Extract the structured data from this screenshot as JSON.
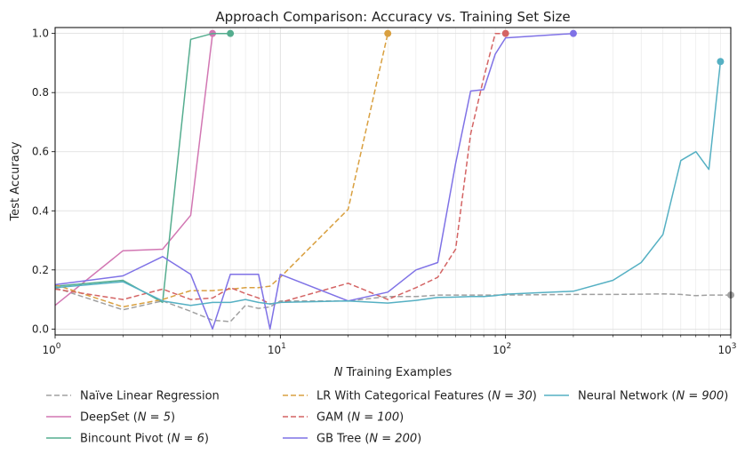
{
  "chart_data": {
    "type": "line",
    "title": "Approach Comparison: Accuracy vs. Training Set Size",
    "xlabel_italic": "N",
    "xlabel_rest": " Training Examples",
    "ylabel": "Test Accuracy",
    "x_scale": "log",
    "xlim": [
      1,
      1000
    ],
    "ylim": [
      -0.02,
      1.02
    ],
    "x_ticks": [
      1,
      10,
      100,
      1000
    ],
    "x_tick_labels": [
      {
        "base": "10",
        "exp": "0"
      },
      {
        "base": "10",
        "exp": "1"
      },
      {
        "base": "10",
        "exp": "2"
      },
      {
        "base": "10",
        "exp": "3"
      }
    ],
    "y_ticks": [
      0.0,
      0.2,
      0.4,
      0.6,
      0.8,
      1.0
    ],
    "y_tick_labels": [
      "0.0",
      "0.2",
      "0.4",
      "0.6",
      "0.8",
      "1.0"
    ],
    "grid": true,
    "legend_position": "bottom",
    "series": [
      {
        "name": "Naïve Linear Regression",
        "legend_main": "Naïve Linear Regression",
        "legend_note": "",
        "color": "#a0a0a0",
        "dash": true,
        "end_marker": true,
        "x": [
          1,
          2,
          3,
          4,
          5,
          6,
          7,
          8,
          9,
          10,
          20,
          30,
          40,
          50,
          60,
          70,
          80,
          90,
          100,
          200,
          300,
          400,
          500,
          600,
          700,
          800,
          900,
          1000
        ],
        "y": [
          0.14,
          0.065,
          0.095,
          0.06,
          0.03,
          0.025,
          0.08,
          0.07,
          0.075,
          0.095,
          0.095,
          0.11,
          0.11,
          0.115,
          0.115,
          0.115,
          0.115,
          0.115,
          0.115,
          0.117,
          0.117,
          0.118,
          0.119,
          0.117,
          0.113,
          0.115,
          0.115,
          0.115
        ]
      },
      {
        "name": "DeepSet (N = 5)",
        "legend_main": "DeepSet (",
        "legend_note": "N = 5",
        "color": "#d277b3",
        "dash": false,
        "end_marker": true,
        "x": [
          1,
          2,
          3,
          4,
          5
        ],
        "y": [
          0.08,
          0.265,
          0.27,
          0.385,
          1.0
        ]
      },
      {
        "name": "Bincount Pivot (N = 6)",
        "legend_main": "Bincount Pivot (",
        "legend_note": "N = 6",
        "color": "#55ad8f",
        "dash": false,
        "end_marker": true,
        "x": [
          1,
          2,
          3,
          4,
          5,
          6
        ],
        "y": [
          0.145,
          0.165,
          0.09,
          0.98,
          1.0,
          1.0
        ]
      },
      {
        "name": "LR With Categorical Features (N = 30)",
        "legend_main": "LR With Categorical Features (",
        "legend_note": "N = 30",
        "color": "#d9a040",
        "dash": true,
        "end_marker": true,
        "x": [
          1,
          2,
          3,
          4,
          5,
          6,
          7,
          8,
          9,
          10,
          20,
          30
        ],
        "y": [
          0.15,
          0.075,
          0.1,
          0.13,
          0.13,
          0.135,
          0.14,
          0.14,
          0.145,
          0.175,
          0.405,
          1.0
        ]
      },
      {
        "name": "GAM (N = 100)",
        "legend_main": "GAM (",
        "legend_note": "N = 100",
        "color": "#d46464",
        "dash": true,
        "end_marker": true,
        "x": [
          1,
          2,
          3,
          4,
          5,
          6,
          7,
          8,
          9,
          10,
          20,
          30,
          40,
          50,
          60,
          70,
          80,
          90,
          100
        ],
        "y": [
          0.135,
          0.1,
          0.135,
          0.1,
          0.105,
          0.14,
          0.12,
          0.105,
          0.085,
          0.09,
          0.155,
          0.1,
          0.14,
          0.175,
          0.27,
          0.66,
          0.85,
          1.0,
          1.0
        ]
      },
      {
        "name": "GB Tree (N = 200)",
        "legend_main": "GB Tree (",
        "legend_note": "N = 200",
        "color": "#7f72e6",
        "dash": false,
        "end_marker": true,
        "x": [
          1,
          2,
          3,
          4,
          5,
          6,
          7,
          8,
          9,
          10,
          20,
          30,
          40,
          50,
          60,
          70,
          80,
          90,
          100,
          200
        ],
        "y": [
          0.15,
          0.18,
          0.245,
          0.185,
          0.0,
          0.185,
          0.185,
          0.185,
          0.0,
          0.185,
          0.095,
          0.125,
          0.2,
          0.225,
          0.56,
          0.805,
          0.81,
          0.93,
          0.985,
          1.0
        ]
      },
      {
        "name": "Neural Network (N = 900)",
        "legend_main": "Neural Network (",
        "legend_note": "N = 900",
        "color": "#55b0c3",
        "dash": false,
        "end_marker": true,
        "x": [
          1,
          2,
          3,
          4,
          5,
          6,
          7,
          8,
          9,
          10,
          20,
          30,
          40,
          50,
          60,
          70,
          80,
          90,
          100,
          200,
          300,
          400,
          500,
          600,
          700,
          800,
          900
        ],
        "y": [
          0.14,
          0.16,
          0.095,
          0.08,
          0.09,
          0.09,
          0.1,
          0.09,
          0.085,
          0.09,
          0.095,
          0.088,
          0.097,
          0.107,
          0.108,
          0.11,
          0.11,
          0.113,
          0.118,
          0.128,
          0.165,
          0.225,
          0.32,
          0.57,
          0.6,
          0.54,
          0.905
        ]
      }
    ]
  }
}
